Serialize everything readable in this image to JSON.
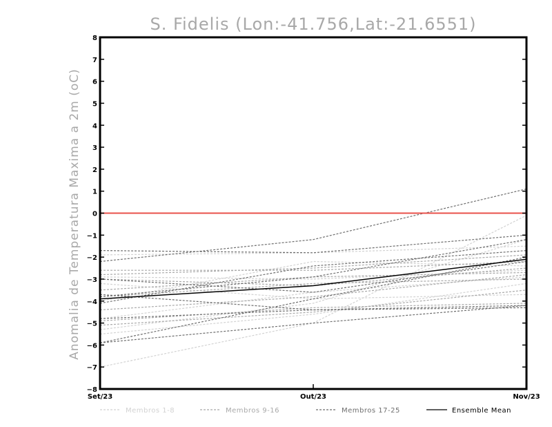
{
  "chart_data": {
    "type": "line",
    "title": "S. Fidelis (Lon:-41.756,Lat:-21.6551)",
    "xlabel": "",
    "ylabel": "Anomalia de Temperatura Maxima a 2m (oC)",
    "categories": [
      "Set/23",
      "Out/23",
      "Nov/23"
    ],
    "ylim": [
      -8,
      8
    ],
    "yticks": [
      -8,
      -7,
      -6,
      -5,
      -4,
      -3,
      -2,
      -1,
      0,
      1,
      2,
      3,
      4,
      5,
      6,
      7,
      8
    ],
    "reference_line": {
      "y": 0,
      "color": "#e8504a"
    },
    "groups": [
      {
        "name": "Membros 1-8",
        "color": "#d2d2d2",
        "dash": "3,2",
        "series": [
          {
            "name": "m1",
            "values": [
              -7.0,
              -5.0,
              -0.1
            ]
          },
          {
            "name": "m2",
            "values": [
              -5.3,
              -4.1,
              -1.2
            ]
          },
          {
            "name": "m3",
            "values": [
              -4.8,
              -3.6,
              -2.9
            ]
          },
          {
            "name": "m4",
            "values": [
              -4.0,
              -2.2,
              -2.4
            ]
          },
          {
            "name": "m5",
            "values": [
              -3.2,
              -3.9,
              -3.7
            ]
          },
          {
            "name": "m6",
            "values": [
              -2.9,
              -3.0,
              -2.6
            ]
          },
          {
            "name": "m7",
            "values": [
              -5.5,
              -4.6,
              -3.2
            ]
          },
          {
            "name": "m8",
            "values": [
              -1.9,
              -1.8,
              -1.5
            ]
          }
        ]
      },
      {
        "name": "Membros 9-16",
        "color": "#a8a8a8",
        "dash": "3,2",
        "series": [
          {
            "name": "m9",
            "values": [
              -2.6,
              -2.6,
              -2.2
            ]
          },
          {
            "name": "m10",
            "values": [
              -3.5,
              -2.9,
              -2.7
            ]
          },
          {
            "name": "m11",
            "values": [
              -3.8,
              -3.2,
              -3.0
            ]
          },
          {
            "name": "m12",
            "values": [
              -4.9,
              -4.3,
              -4.1
            ]
          },
          {
            "name": "m13",
            "values": [
              -5.1,
              -4.5,
              -3.5
            ]
          },
          {
            "name": "m14",
            "values": [
              -3.0,
              -3.3,
              -2.5
            ]
          },
          {
            "name": "m15",
            "values": [
              -2.8,
              -2.5,
              -1.9
            ]
          },
          {
            "name": "m16",
            "values": [
              -4.4,
              -3.8,
              -2.8
            ]
          }
        ]
      },
      {
        "name": "Membros 17-25",
        "color": "#6e6e6e",
        "dash": "3,2",
        "series": [
          {
            "name": "m17",
            "values": [
              -2.2,
              -1.2,
              1.1
            ]
          },
          {
            "name": "m18",
            "values": [
              -1.7,
              -1.8,
              -1.0
            ]
          },
          {
            "name": "m19",
            "values": [
              -3.7,
              -4.4,
              -4.3
            ]
          },
          {
            "name": "m20",
            "values": [
              -5.9,
              -3.9,
              -2.0
            ]
          },
          {
            "name": "m21",
            "values": [
              -4.1,
              -2.4,
              -1.7
            ]
          },
          {
            "name": "m22",
            "values": [
              -3.8,
              -2.9,
              -1.2
            ]
          },
          {
            "name": "m23",
            "values": [
              -4.8,
              -4.4,
              -4.2
            ]
          },
          {
            "name": "m24",
            "values": [
              -5.9,
              -5.0,
              -4.2
            ]
          },
          {
            "name": "m25",
            "values": [
              -3.0,
              -3.6,
              -2.2
            ]
          }
        ]
      }
    ],
    "ensemble_mean": {
      "name": "Ensemble Mean",
      "color": "#000000",
      "values": [
        -3.9,
        -3.3,
        -2.1
      ]
    },
    "legend": [
      {
        "label": "Membros 1-8",
        "color": "#d2d2d2",
        "dash": "3,2"
      },
      {
        "label": "Membros 9-16",
        "color": "#a8a8a8",
        "dash": "3,2"
      },
      {
        "label": "Membros 17-25",
        "color": "#6e6e6e",
        "dash": "3,2"
      },
      {
        "label": "Ensemble Mean",
        "color": "#000000",
        "dash": ""
      }
    ],
    "legend_position": "bottom",
    "grid": false
  }
}
